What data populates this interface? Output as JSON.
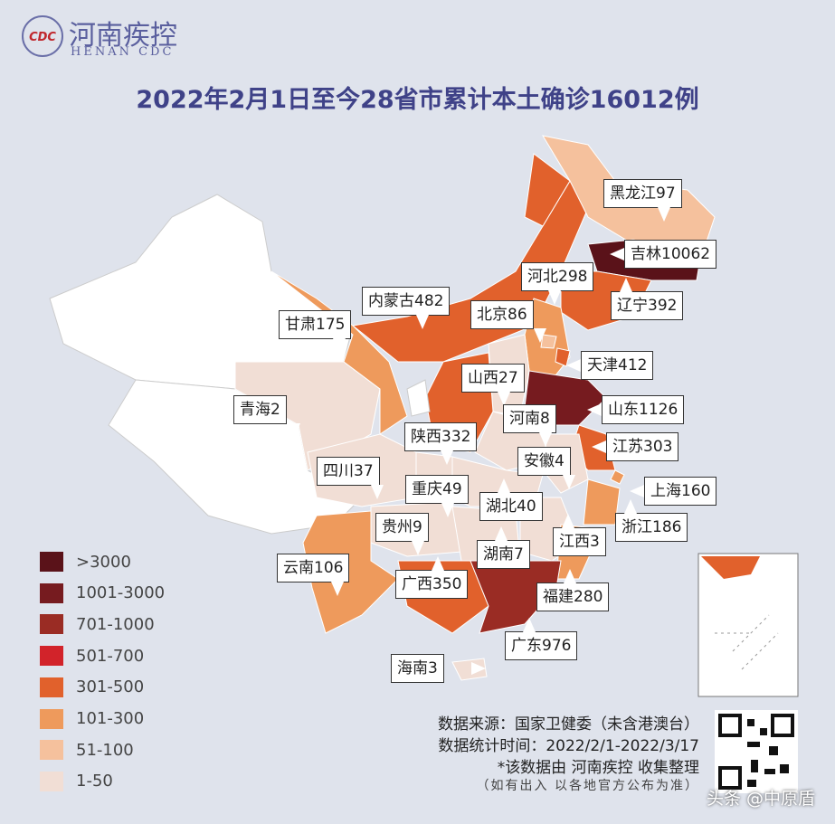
{
  "header": {
    "logo_cn": "河南疾控",
    "logo_en": "HENAN CDC",
    "logo_mark": "CDC",
    "title": "2022年2月1日至今28省市累计本土确诊16012例"
  },
  "legend": [
    {
      "label": ">3000",
      "color": "#5a1219"
    },
    {
      "label": "1001-3000",
      "color": "#761b1f"
    },
    {
      "label": "701-1000",
      "color": "#9a2c24"
    },
    {
      "label": "501-700",
      "color": "#d2232a"
    },
    {
      "label": "301-500",
      "color": "#e1612c"
    },
    {
      "label": "101-300",
      "color": "#ee9a5c"
    },
    {
      "label": "51-100",
      "color": "#f5c19d"
    },
    {
      "label": "1-50",
      "color": "#f1ded5"
    }
  ],
  "provinces": [
    {
      "name": "黑龙江",
      "cases": 97
    },
    {
      "name": "吉林",
      "cases": 10062
    },
    {
      "name": "河北",
      "cases": 298
    },
    {
      "name": "内蒙古",
      "cases": 482
    },
    {
      "name": "辽宁",
      "cases": 392
    },
    {
      "name": "北京",
      "cases": 86
    },
    {
      "name": "甘肃",
      "cases": 175
    },
    {
      "name": "天津",
      "cases": 412
    },
    {
      "name": "山西",
      "cases": 27
    },
    {
      "name": "青海",
      "cases": 2
    },
    {
      "name": "河南",
      "cases": 8
    },
    {
      "name": "山东",
      "cases": 1126
    },
    {
      "name": "陕西",
      "cases": 332
    },
    {
      "name": "江苏",
      "cases": 303
    },
    {
      "name": "安徽",
      "cases": 4
    },
    {
      "name": "四川",
      "cases": 37
    },
    {
      "name": "上海",
      "cases": 160
    },
    {
      "name": "重庆",
      "cases": 49
    },
    {
      "name": "湖北",
      "cases": 40
    },
    {
      "name": "浙江",
      "cases": 186
    },
    {
      "name": "贵州",
      "cases": 9
    },
    {
      "name": "江西",
      "cases": 3
    },
    {
      "name": "湖南",
      "cases": 7
    },
    {
      "name": "云南",
      "cases": 106
    },
    {
      "name": "广西",
      "cases": 350
    },
    {
      "name": "福建",
      "cases": 280
    },
    {
      "name": "广东",
      "cases": 976
    },
    {
      "name": "海南",
      "cases": 3
    }
  ],
  "footer": {
    "source": "数据来源：国家卫健委（未含港澳台）",
    "period": "数据统计时间：2022/2/1-2022/3/17",
    "credit": "*该数据由 河南疾控 收集整理",
    "note": "（如有出入 以各地官方公布为准）",
    "watermark": "头条 @中原盾"
  }
}
